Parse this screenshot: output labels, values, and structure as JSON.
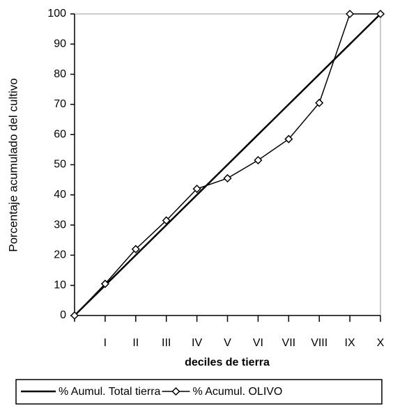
{
  "chart_data": {
    "type": "line",
    "x_label": "deciles de tierra",
    "y_label": "Porcentaje acumulado del cultivo",
    "categories": [
      null,
      "I",
      "II",
      "III",
      "IV",
      "V",
      "VI",
      "VII",
      "VIII",
      "IX",
      "X"
    ],
    "series": [
      {
        "name": "% Aumul. Total tierra",
        "color": "#000000",
        "marker": "none",
        "values": [
          0,
          10,
          20,
          30,
          40,
          50,
          60,
          70,
          80,
          90,
          100
        ]
      },
      {
        "name": "% Acumul. OLIVO",
        "color": "#000000",
        "marker": "diamond",
        "values": [
          0,
          10.5,
          22,
          31.5,
          42,
          45.5,
          51.5,
          58.5,
          70.5,
          100,
          100
        ]
      }
    ],
    "ylim": [
      0,
      100
    ],
    "yticks": [
      0,
      10,
      20,
      30,
      40,
      50,
      60,
      70,
      80,
      90,
      100
    ],
    "grid": false,
    "legend": "bottom"
  }
}
